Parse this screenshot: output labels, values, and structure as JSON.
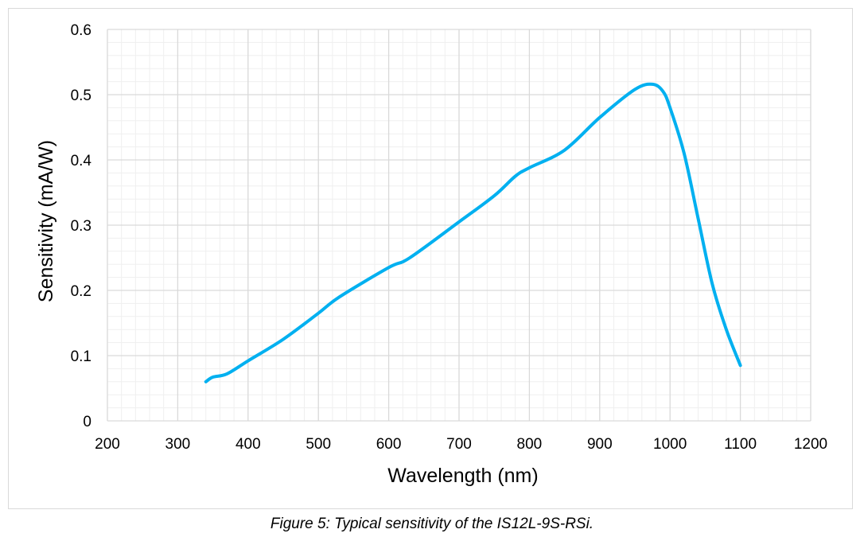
{
  "chart_data": {
    "type": "line",
    "xlabel": "Wavelength (nm)",
    "ylabel": "Sensitivity (mA/W)",
    "xlim": [
      200,
      1200
    ],
    "ylim": [
      0,
      0.6
    ],
    "xticks": [
      200,
      300,
      400,
      500,
      600,
      700,
      800,
      900,
      1000,
      1100,
      1200
    ],
    "yticks": [
      "0",
      "0.1",
      "0.2",
      "0.3",
      "0.4",
      "0.5",
      "0.6"
    ],
    "grid": true,
    "minor_grid": true,
    "color": "#00b0f0",
    "series": [
      {
        "x": [
          340,
          350,
          370,
          400,
          450,
          500,
          530,
          600,
          630,
          700,
          750,
          780,
          800,
          850,
          900,
          950,
          975,
          990,
          1000,
          1020,
          1040,
          1060,
          1080,
          1100
        ],
        "y": [
          0.06,
          0.067,
          0.072,
          0.092,
          0.125,
          0.165,
          0.19,
          0.235,
          0.25,
          0.305,
          0.345,
          0.375,
          0.388,
          0.415,
          0.465,
          0.508,
          0.516,
          0.505,
          0.48,
          0.41,
          0.31,
          0.21,
          0.14,
          0.085
        ]
      }
    ]
  },
  "caption": "Figure 5: Typical sensitivity of the IS12L-9S-RSi."
}
